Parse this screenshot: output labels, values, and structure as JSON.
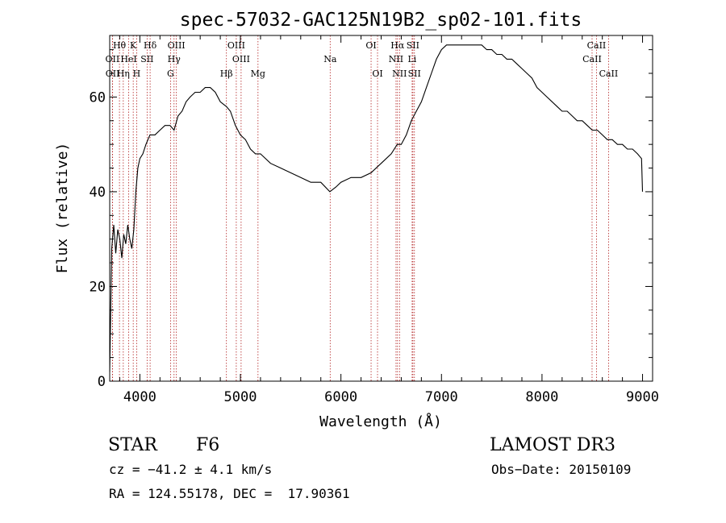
{
  "chart_data": {
    "type": "line",
    "title": "spec-57032-GAC125N19B2_sp02-101.fits",
    "xlabel": "Wavelength (Å)",
    "ylabel": "Flux (relative)",
    "xlim": [
      3700,
      9100
    ],
    "ylim": [
      0,
      73
    ],
    "xticks": [
      4000,
      5000,
      6000,
      7000,
      8000,
      9000
    ],
    "xtick_labels": [
      "4000",
      "5000",
      "6000",
      "7000",
      "8000",
      "9000"
    ],
    "yticks": [
      0,
      20,
      40,
      60
    ],
    "ytick_labels": [
      "0",
      "20",
      "40",
      "60"
    ],
    "grid": false,
    "series": [
      {
        "color": "#000000",
        "x": [
          3700,
          3720,
          3740,
          3760,
          3780,
          3800,
          3820,
          3840,
          3860,
          3880,
          3900,
          3920,
          3940,
          3960,
          3980,
          4000,
          4030,
          4060,
          4100,
          4150,
          4200,
          4250,
          4300,
          4340,
          4380,
          4420,
          4460,
          4500,
          4550,
          4600,
          4650,
          4700,
          4750,
          4800,
          4860,
          4900,
          4950,
          5000,
          5050,
          5100,
          5150,
          5200,
          5300,
          5400,
          5500,
          5600,
          5700,
          5800,
          5890,
          5950,
          6000,
          6100,
          6200,
          6300,
          6400,
          6500,
          6560,
          6600,
          6650,
          6700,
          6750,
          6800,
          6850,
          6900,
          6950,
          7000,
          7050,
          7100,
          7150,
          7200,
          7250,
          7300,
          7350,
          7400,
          7450,
          7500,
          7550,
          7600,
          7650,
          7700,
          7750,
          7800,
          7850,
          7900,
          7950,
          8000,
          8050,
          8100,
          8150,
          8200,
          8250,
          8300,
          8350,
          8400,
          8450,
          8500,
          8550,
          8600,
          8650,
          8700,
          8750,
          8800,
          8850,
          8900,
          8950,
          8990,
          9000
        ],
        "y": [
          2,
          28,
          33,
          27,
          32,
          30,
          26,
          31,
          29,
          33,
          30,
          28,
          32,
          40,
          45,
          47,
          48,
          50,
          52,
          52,
          53,
          54,
          54,
          53,
          56,
          57,
          59,
          60,
          61,
          61,
          62,
          62,
          61,
          59,
          58,
          57,
          54,
          52,
          51,
          49,
          48,
          48,
          46,
          45,
          44,
          43,
          42,
          42,
          40,
          41,
          42,
          43,
          43,
          44,
          46,
          48,
          50,
          50,
          52,
          55,
          57,
          59,
          62,
          65,
          68,
          70,
          71,
          71,
          71,
          71,
          71,
          71,
          71,
          71,
          70,
          70,
          69,
          69,
          68,
          68,
          67,
          66,
          65,
          64,
          62,
          61,
          60,
          59,
          58,
          57,
          57,
          56,
          55,
          55,
          54,
          53,
          53,
          52,
          51,
          51,
          50,
          50,
          49,
          49,
          48,
          47,
          40
        ]
      }
    ],
    "spectral_lines": [
      {
        "label": "Hθ",
        "wavelength": 3797,
        "row": 0
      },
      {
        "label": "K",
        "wavelength": 3934,
        "row": 0
      },
      {
        "label": "Hδ",
        "wavelength": 4102,
        "row": 0
      },
      {
        "label": "OIII",
        "wavelength": 4363,
        "row": 0
      },
      {
        "label": "OIII",
        "wavelength": 4959,
        "row": 0
      },
      {
        "label": "OI",
        "wavelength": 6300,
        "row": 0
      },
      {
        "label": "Hα",
        "wavelength": 6563,
        "row": 0
      },
      {
        "label": "SII",
        "wavelength": 6716,
        "row": 0
      },
      {
        "label": "CaII",
        "wavelength": 8542,
        "row": 0
      },
      {
        "label": "OII",
        "wavelength": 3727,
        "row": 1
      },
      {
        "label": "HeI",
        "wavelength": 3889,
        "row": 1
      },
      {
        "label": "SII",
        "wavelength": 4072,
        "row": 1
      },
      {
        "label": "Hγ",
        "wavelength": 4340,
        "row": 1
      },
      {
        "label": "OIII",
        "wavelength": 5007,
        "row": 1
      },
      {
        "label": "Na",
        "wavelength": 5893,
        "row": 1
      },
      {
        "label": "NII",
        "wavelength": 6548,
        "row": 1
      },
      {
        "label": "Li",
        "wavelength": 6708,
        "row": 1
      },
      {
        "label": "CaII",
        "wavelength": 8498,
        "row": 1
      },
      {
        "label": "OII",
        "wavelength": 3729,
        "row": 2
      },
      {
        "label": "Hη",
        "wavelength": 3835,
        "row": 2
      },
      {
        "label": "H",
        "wavelength": 3968,
        "row": 2
      },
      {
        "label": "G",
        "wavelength": 4305,
        "row": 2
      },
      {
        "label": "Hβ",
        "wavelength": 4861,
        "row": 2
      },
      {
        "label": "Mg",
        "wavelength": 5175,
        "row": 2
      },
      {
        "label": "OI",
        "wavelength": 6364,
        "row": 2
      },
      {
        "label": "NII",
        "wavelength": 6583,
        "row": 2
      },
      {
        "label": "SII",
        "wavelength": 6731,
        "row": 2
      },
      {
        "label": "CaII",
        "wavelength": 8662,
        "row": 2
      }
    ]
  },
  "footer": {
    "object_type": "STAR",
    "subclass": "F6",
    "survey": "LAMOST DR3",
    "cz": "cz = −41.2 ± 4.1 km/s",
    "obs_date": "Obs−Date: 20150109",
    "coords": "RA = 124.55178, DEC =  17.90361"
  }
}
